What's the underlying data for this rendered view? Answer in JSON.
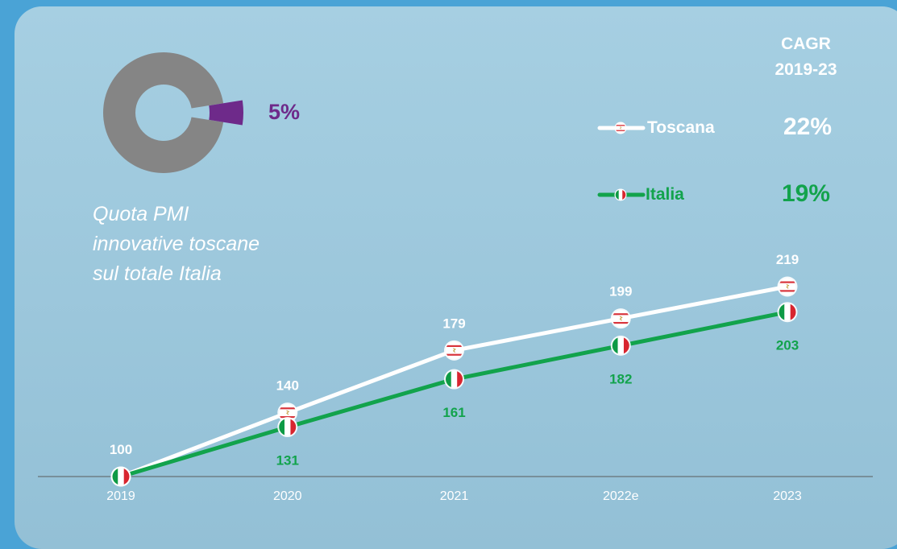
{
  "share": {
    "value_label": "5%",
    "fraction": 0.05,
    "caption_lines": [
      "Quota PMI",
      "innovative toscane",
      "sul totale Italia"
    ],
    "colors": {
      "share": "#6e2a8a",
      "rest": "#858585"
    }
  },
  "cagr": {
    "header_lines": [
      "CAGR",
      "2019-23"
    ]
  },
  "chart_data": {
    "type": "line",
    "categories": [
      "2019",
      "2020",
      "2021",
      "2022e",
      "2023"
    ],
    "series": [
      {
        "name": "Toscana",
        "values": [
          100,
          140,
          179,
          199,
          219
        ],
        "labels": [
          "100",
          "140",
          "179",
          "199",
          "219"
        ],
        "cagr": "22%",
        "color": "#ffffff",
        "marker_icon": "tuscany-flag-icon"
      },
      {
        "name": "Italia",
        "values": [
          100,
          131,
          161,
          182,
          203
        ],
        "labels": [
          "",
          "131",
          "161",
          "182",
          "203"
        ],
        "cagr": "19%",
        "color": "#12a34c",
        "marker_icon": "italian-flag-icon"
      }
    ],
    "ylim": [
      100,
      219
    ],
    "grid": false,
    "legend_placement": "top-right"
  }
}
